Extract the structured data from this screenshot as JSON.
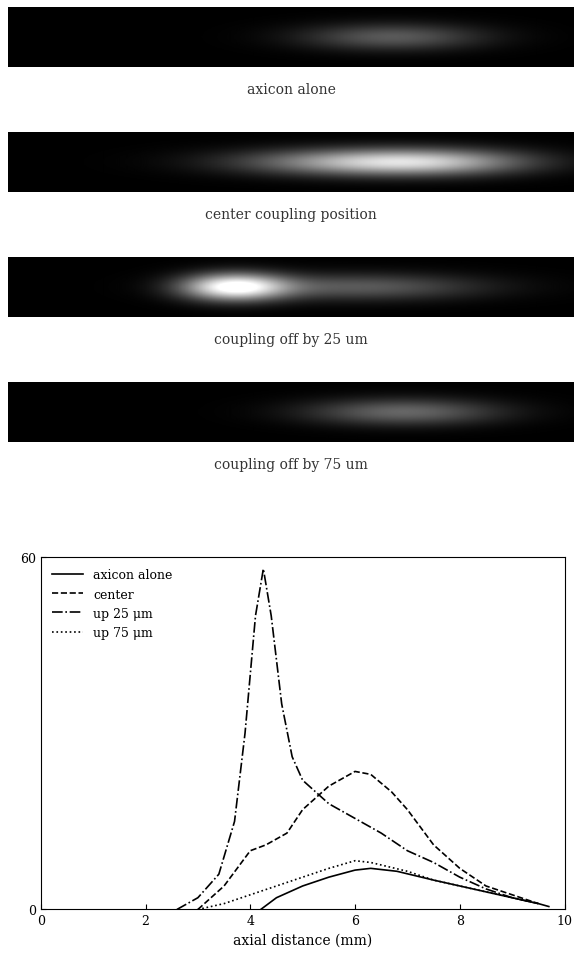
{
  "images": [
    {
      "caption": "axicon alone"
    },
    {
      "caption": "center coupling position"
    },
    {
      "caption": "coupling off by 25 um"
    },
    {
      "caption": "coupling off by 75 um"
    }
  ],
  "chart_data": {
    "type": "line",
    "xlabel": "axial distance (mm)",
    "xlim": [
      0,
      10
    ],
    "xticks": [
      0,
      2,
      4,
      6,
      8,
      10
    ],
    "ylim": [
      0,
      60
    ],
    "yticks": [
      0,
      60
    ],
    "legend": "upper left",
    "series": [
      {
        "name": "axicon alone",
        "color": "#000000",
        "line_style": "solid",
        "x": [
          4.2,
          4.5,
          5.0,
          5.5,
          6.0,
          6.3,
          6.8,
          7.5,
          8.0,
          8.5,
          9.0,
          9.5,
          9.7
        ],
        "values": [
          0,
          2,
          4,
          5.5,
          6.7,
          7,
          6.5,
          5,
          4,
          3,
          2,
          1,
          0.5
        ]
      },
      {
        "name": "center",
        "color": "#000000",
        "line_style": "dashed",
        "x": [
          3.0,
          3.5,
          4.0,
          4.3,
          4.7,
          5.0,
          5.5,
          6.0,
          6.3,
          6.7,
          7.0,
          7.5,
          8.0,
          8.5,
          9.0,
          9.5
        ],
        "values": [
          0,
          4,
          10,
          11,
          13,
          17,
          21,
          23.5,
          23,
          20,
          17,
          11,
          7,
          4,
          2.5,
          1
        ]
      },
      {
        "name": "up 25 μm",
        "color": "#000000",
        "line_style": "dashdot",
        "x": [
          2.6,
          3.0,
          3.4,
          3.7,
          3.9,
          4.1,
          4.25,
          4.4,
          4.6,
          4.8,
          5.0,
          5.5,
          6.0,
          6.5,
          7.0,
          7.5,
          8.0,
          8.5,
          9.0,
          9.5
        ],
        "values": [
          0,
          2,
          6,
          15,
          30,
          50,
          58,
          50,
          35,
          26,
          22,
          18,
          15.5,
          13,
          10,
          8,
          5.5,
          3.5,
          2,
          1
        ]
      },
      {
        "name": "up 75 μm",
        "color": "#000000",
        "line_style": "dotted",
        "x": [
          3.0,
          3.5,
          4.0,
          4.5,
          5.0,
          5.5,
          6.0,
          6.3,
          7.0,
          7.5,
          8.0,
          8.5,
          9.0,
          9.5
        ],
        "values": [
          0,
          1,
          2.5,
          4,
          5.5,
          7,
          8.3,
          8,
          6.5,
          5,
          4,
          3,
          2,
          1
        ]
      }
    ]
  }
}
